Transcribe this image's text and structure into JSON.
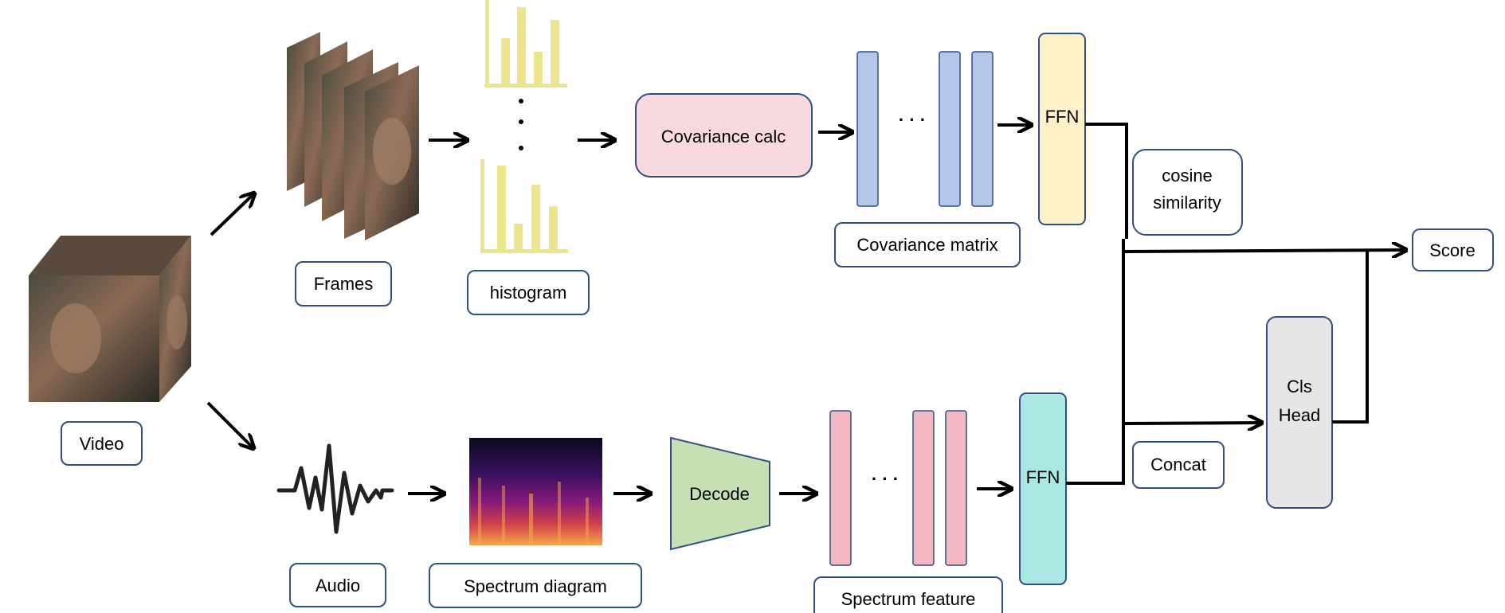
{
  "labels": {
    "video": "Video",
    "frames": "Frames",
    "histogram": "histogram",
    "covariance_calc": "Covariance calc",
    "covariance_matrix": "Covariance matrix",
    "ffn_top": "FFN",
    "cosine_similarity_line1": "cosine",
    "cosine_similarity_line2": "similarity",
    "score": "Score",
    "cls_head_line1": "Cls",
    "cls_head_line2": "Head",
    "concat": "Concat",
    "audio": "Audio",
    "spectrum_diagram": "Spectrum diagram",
    "decode": "Decode",
    "spectrum_feature": "Spectrum feature",
    "ffn_bottom": "FFN",
    "ellipsis_top": "· · ·",
    "ellipsis_bottom": "· · ·"
  },
  "colors": {
    "covariance_calc_fill": "#f9d9e0",
    "covariance_matrix_bar": "#b4c7ea",
    "spectrum_feature_bar": "#f3b8c4",
    "ffn_top_fill": "#fef1c8",
    "ffn_bottom_fill": "#a9e8e3",
    "decode_fill": "#c6e0b4",
    "cls_head_fill": "#e6e6e6",
    "histogram_bar": "#ebe58b",
    "box_stroke": "#2f4f86"
  }
}
